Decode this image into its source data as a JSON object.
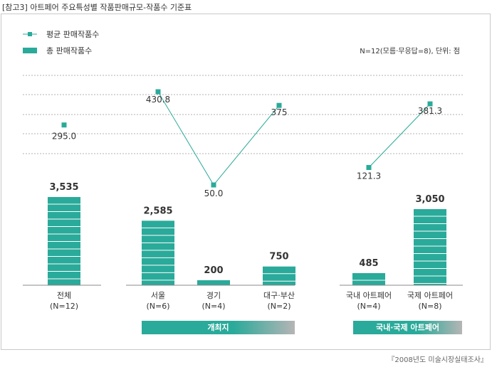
{
  "title": "[참고3] 아트페어 주요특성별 작품판매규모-작품수 기준표",
  "source": "『2008년도 미술시장실태조사』",
  "chart_data": {
    "type": "bar",
    "note": "N=12(모름·무응답=8), 단위: 점",
    "legend": {
      "line_label": "평균 판매작품수",
      "bar_label": "총 판매작품수"
    },
    "categories": [
      {
        "name": "전체",
        "n": "(N=12)"
      },
      {
        "name": "서울",
        "n": "(N=6)"
      },
      {
        "name": "경기",
        "n": "(N=4)"
      },
      {
        "name": "대구·부산",
        "n": "(N=2)"
      },
      {
        "name": "국내 아트페어",
        "n": "(N=4)"
      },
      {
        "name": "국제 아트페어",
        "n": "(N=8)"
      }
    ],
    "series": [
      {
        "name": "총 판매작품수",
        "kind": "bar",
        "color": "#2aaa9a",
        "values": [
          3535,
          2585,
          200,
          750,
          485,
          3050
        ],
        "labels": [
          "3,535",
          "2,585",
          "200",
          "750",
          "485",
          "3,050"
        ]
      },
      {
        "name": "평균 판매작품수",
        "kind": "line",
        "color": "#2aaa9a",
        "values": [
          295.0,
          430.8,
          50.0,
          375,
          121.3,
          381.3
        ],
        "labels": [
          "295.0",
          "430.8",
          "50.0",
          "375",
          "121.3",
          "381.3"
        ]
      }
    ],
    "groups": [
      {
        "label": "개최지",
        "from": 1,
        "to": 3
      },
      {
        "label": "국내·국제 아트페어",
        "from": 4,
        "to": 5
      }
    ],
    "colors": {
      "accent": "#2aaa9a",
      "stripe": "#ffffff",
      "group_left": "#2aaa9a",
      "group_right": "#b5b5b5"
    }
  }
}
